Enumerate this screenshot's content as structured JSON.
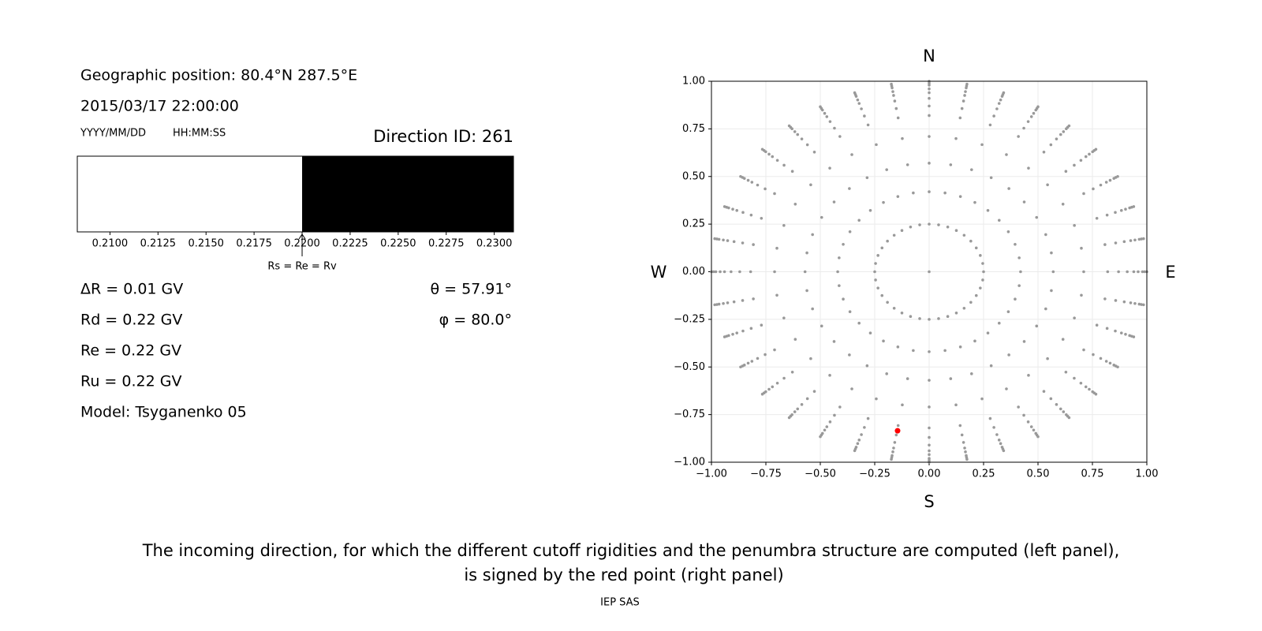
{
  "info": {
    "position": "Geographic position: 80.4°N 287.5°E",
    "datetime": "2015/03/17 22:00:00",
    "date_format": "YYYY/MM/DD",
    "time_format": "HH:MM:SS",
    "direction": "Direction ID: 261"
  },
  "penumbra": {
    "type": "bar",
    "xlim": [
      0.2083,
      0.231
    ],
    "boundary": 0.22,
    "colors": [
      "#ffffff",
      "#000000"
    ],
    "annotation": "Rs = Re = Rv",
    "xticks": [
      {
        "value": 0.21,
        "label": "0.2100"
      },
      {
        "value": 0.2125,
        "label": "0.2125"
      },
      {
        "value": 0.215,
        "label": "0.2150"
      },
      {
        "value": 0.2175,
        "label": "0.2175"
      },
      {
        "value": 0.22,
        "label": "0.2200"
      },
      {
        "value": 0.2225,
        "label": "0.2225"
      },
      {
        "value": 0.225,
        "label": "0.2250"
      },
      {
        "value": 0.2275,
        "label": "0.2275"
      },
      {
        "value": 0.23,
        "label": "0.2300"
      }
    ]
  },
  "results": {
    "left": [
      "ΔR = 0.01 GV",
      "Rd = 0.22 GV",
      "Re = 0.22 GV",
      "Ru = 0.22 GV",
      "Model: Tsyganenko 05"
    ],
    "right": [
      "θ = 57.91°",
      "φ = 80.0°"
    ]
  },
  "chart_data": {
    "type": "scatter",
    "xlim": [
      -1,
      1
    ],
    "ylim": [
      -1,
      1
    ],
    "grid": true,
    "xticks": [
      {
        "value": -1,
        "label": "−1.00"
      },
      {
        "value": -0.75,
        "label": "−0.75"
      },
      {
        "value": -0.5,
        "label": "−0.50"
      },
      {
        "value": -0.25,
        "label": "−0.25"
      },
      {
        "value": 0,
        "label": "0.00"
      },
      {
        "value": 0.25,
        "label": "0.25"
      },
      {
        "value": 0.5,
        "label": "0.50"
      },
      {
        "value": 0.75,
        "label": "0.75"
      },
      {
        "value": 1,
        "label": "1.00"
      }
    ],
    "yticks": [
      {
        "value": -1,
        "label": "−1.00"
      },
      {
        "value": -0.75,
        "label": "−0.75"
      },
      {
        "value": -0.5,
        "label": "−0.50"
      },
      {
        "value": -0.25,
        "label": "−0.25"
      },
      {
        "value": 0,
        "label": "0.00"
      },
      {
        "value": 0.25,
        "label": "0.25"
      },
      {
        "value": 0.5,
        "label": "0.50"
      },
      {
        "value": 0.75,
        "label": "0.75"
      },
      {
        "value": 1,
        "label": "1.00"
      }
    ],
    "directions": {
      "north": "N",
      "south": "S",
      "west": "W",
      "east": "E"
    },
    "points": {
      "color": "#999999",
      "azimuths": [
        0,
        10,
        20,
        30,
        40,
        50,
        60,
        70,
        80,
        90,
        100,
        110,
        120,
        130,
        140,
        150,
        160,
        170,
        180,
        190,
        200,
        210,
        220,
        230,
        240,
        250,
        260,
        270,
        280,
        290,
        300,
        310,
        320,
        330,
        340,
        350
      ],
      "radii": [
        0.25,
        0.42,
        0.57,
        0.71,
        0.82,
        0.87,
        0.91,
        0.94,
        0.96,
        0.98,
        0.99,
        1.0
      ],
      "center": {
        "x": 0,
        "y": 0
      }
    },
    "selected": {
      "color": "#ff0000",
      "x": -0.145,
      "y": -0.835
    }
  },
  "caption": [
    "The incoming direction, for which the different cutoff rigidities and the penumbra structure are computed (left panel),",
    "is signed by the red point (right panel)"
  ],
  "footer": "IEP SAS"
}
